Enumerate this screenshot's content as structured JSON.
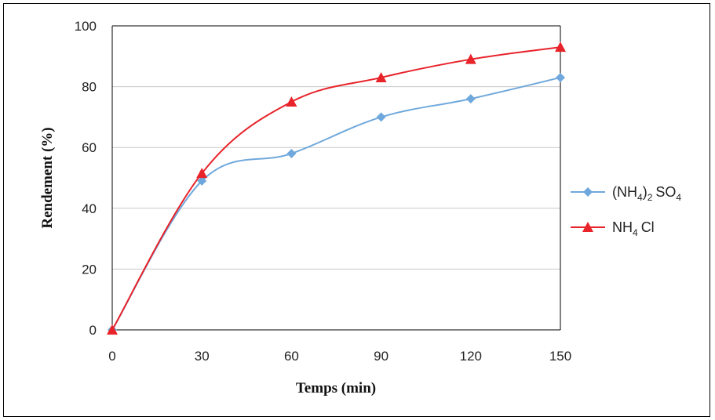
{
  "chart_data": {
    "type": "line",
    "title": "",
    "xlabel": "Temps (min)",
    "ylabel": "Rendement (%)",
    "x": [
      0,
      30,
      60,
      90,
      120,
      150
    ],
    "xticks": [
      "0",
      "30",
      "60",
      "90",
      "120",
      "150"
    ],
    "yticks": [
      "0",
      "20",
      "40",
      "60",
      "80",
      "100"
    ],
    "xlim": [
      0,
      150
    ],
    "ylim": [
      0,
      100
    ],
    "grid": "horizontal",
    "legend_position": "right",
    "series": [
      {
        "name_main": "(NH",
        "name_sub1": "4",
        "name_mid": ")",
        "name_sub2": "2",
        "name_tail": "SO",
        "name_sub3": "4",
        "name": "(NH4)2SO4",
        "marker": "diamond",
        "color": "#6fa8dc",
        "values": [
          0,
          49,
          58,
          70,
          76,
          83
        ]
      },
      {
        "name_main": "NH",
        "name_sub1": "4",
        "name_tail": "Cl",
        "name": "NH4Cl",
        "marker": "triangle",
        "color": "#e8232a",
        "values": [
          0,
          51.5,
          75,
          83,
          89,
          93
        ]
      }
    ]
  }
}
